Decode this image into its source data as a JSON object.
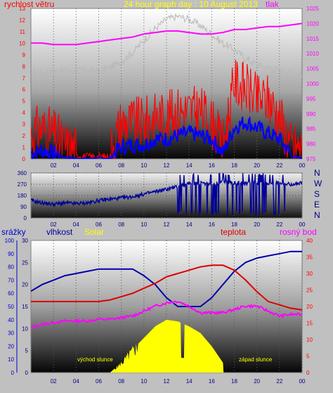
{
  "colors": {
    "wind": "#ff0000",
    "gust": "#0000ff",
    "pressure": "#ff00ff",
    "temp_grey": "#b8b8b8",
    "direction": "#000099",
    "rain": "#0000cc",
    "humidity": "#0000aa",
    "solar": "#ffff00",
    "temperature": "#dd0000",
    "dewpoint": "#ff00ff",
    "title": "#ffff00",
    "annotation": "#ffff00"
  },
  "top_panel": {
    "title": "24 hour graph day : 10 August 2013",
    "left_label": "rychlost větru",
    "right_label": "tlak"
  },
  "middle_panel": {
    "compass": [
      "N",
      "W",
      "S",
      "E",
      "N"
    ]
  },
  "bottom_panel": {
    "rain_label": "srážky",
    "humidity_label": "vlhkost",
    "solar_label": "Solar",
    "temp_label": "teplota",
    "dew_label": "rosný bod",
    "sunrise_label": "východ slunce",
    "sunset_label": "západ slunce"
  },
  "chart_data": [
    {
      "type": "line",
      "x_ticks": [
        "02",
        "04",
        "06",
        "08",
        "10",
        "12",
        "14",
        "16",
        "18",
        "20",
        "22",
        "00"
      ],
      "y_left_ticks": [
        "0",
        "1",
        "2",
        "3",
        "4",
        "5",
        "6",
        "7",
        "8",
        "9",
        "10",
        "11",
        "12",
        "13"
      ],
      "y_right_ticks": [
        "975",
        "980",
        "985",
        "990",
        "995",
        "1000",
        "1005",
        "1010",
        "1015",
        "1020",
        "1025"
      ],
      "ylim_left": [
        0,
        13
      ],
      "ylim_right": [
        975,
        1025
      ],
      "x": [
        0,
        1,
        2,
        3,
        4,
        5,
        6,
        7,
        8,
        9,
        10,
        11,
        12,
        13,
        14,
        15,
        16,
        17,
        18,
        19,
        20,
        21,
        22,
        23,
        24
      ],
      "series": [
        {
          "values": [
            1.5,
            2,
            1.5,
            0.5,
            0.2,
            0.1,
            0.1,
            0.1,
            2.5,
            2.5,
            2.5,
            3,
            3,
            3.5,
            3.5,
            3.5,
            2.5,
            0.5,
            6,
            5.5,
            4.5,
            4.5,
            3,
            0.5,
            0.2
          ]
        },
        {
          "values": [
            0.3,
            0.5,
            0.3,
            0.1,
            0,
            0,
            0,
            0,
            0.8,
            1,
            1,
            1.5,
            1.5,
            1.8,
            2,
            1.8,
            1.5,
            0.3,
            2.5,
            3,
            2.5,
            2,
            1.5,
            0.2,
            0
          ]
        },
        {
          "values": [
            1013.5,
            1013.5,
            1013,
            1013,
            1013,
            1013.5,
            1014,
            1014.5,
            1015,
            1015.5,
            1016.5,
            1017,
            1017.5,
            1017.5,
            1017,
            1016.5,
            1016.5,
            1017,
            1018,
            1018,
            1018.5,
            1019,
            1019,
            1019.5,
            1020
          ]
        },
        {
          "values": [
            1003.5,
            1003.5,
            1004,
            1004,
            1004,
            1004,
            1004,
            1005,
            1007,
            1010,
            1014,
            1018,
            1021,
            1022,
            1021,
            1019,
            1016,
            1013,
            1011,
            1008,
            1006,
            1005,
            1004,
            1003,
            1002
          ]
        }
      ]
    },
    {
      "type": "line",
      "x_ticks": [
        "02",
        "04",
        "06",
        "08",
        "10",
        "12",
        "14",
        "16",
        "18",
        "20",
        "22",
        "00"
      ],
      "y_ticks": [
        "0",
        "90",
        "180",
        "270",
        "360"
      ],
      "ylim": [
        0,
        360
      ],
      "x": [
        0,
        1,
        2,
        3,
        4,
        5,
        6,
        7,
        8,
        9,
        10,
        11,
        12,
        13,
        14,
        15,
        16,
        17,
        18,
        19,
        20,
        21,
        22,
        23,
        24
      ],
      "series": [
        {
          "values": [
            140,
            120,
            110,
            120,
            115,
            120,
            140,
            150,
            160,
            170,
            190,
            210,
            230,
            250,
            280,
            280,
            270,
            290,
            280,
            280,
            280,
            280,
            280,
            270,
            280
          ]
        }
      ]
    },
    {
      "type": "line",
      "x_ticks": [
        "02",
        "04",
        "06",
        "08",
        "10",
        "12",
        "14",
        "16",
        "18",
        "20",
        "22",
        "00"
      ],
      "y_rain_ticks": [
        "0",
        "10",
        "20",
        "30",
        "40",
        "50",
        "60",
        "70",
        "80",
        "90",
        "100"
      ],
      "y_left_ticks": [
        "0",
        "5",
        "10",
        "15",
        "20",
        "25",
        "30"
      ],
      "y_right_ticks": [
        "0",
        "5",
        "10",
        "15",
        "20",
        "25",
        "30",
        "35",
        "40"
      ],
      "ylim_left": [
        0,
        30
      ],
      "ylim_right": [
        0,
        40
      ],
      "x": [
        0,
        1,
        2,
        3,
        4,
        5,
        6,
        7,
        8,
        9,
        10,
        11,
        12,
        13,
        14,
        15,
        16,
        17,
        18,
        19,
        20,
        21,
        22,
        23,
        24
      ],
      "series": [
        {
          "values": [
            18.5,
            20,
            21,
            22,
            22.5,
            23,
            23.5,
            23.5,
            23.5,
            23.5,
            22,
            20,
            17,
            15,
            15,
            15,
            17,
            20,
            23,
            25,
            26,
            26.5,
            27,
            27.5,
            27.5
          ]
        },
        {
          "values": [
            21.5,
            21.5,
            21.5,
            21.5,
            21.5,
            21.5,
            21.5,
            22,
            23,
            24,
            25.5,
            27,
            29,
            30,
            31,
            32,
            32.5,
            32.5,
            31,
            28,
            24.5,
            21.5,
            20.5,
            19.5,
            19
          ]
        },
        {
          "values": [
            13.5,
            14.5,
            15,
            15.5,
            15.5,
            15.5,
            16,
            16,
            16.5,
            17,
            18.5,
            20,
            21,
            21.5,
            20,
            18,
            18,
            18,
            19,
            20,
            20,
            18.5,
            17,
            17.5,
            17.5
          ]
        },
        {
          "values": [
            0,
            0,
            0,
            0,
            0,
            0,
            0,
            0,
            3,
            7,
            10.5,
            14,
            16,
            15.5,
            14,
            12,
            8,
            3,
            0,
            0,
            0,
            0,
            0,
            0,
            0
          ]
        }
      ]
    }
  ]
}
